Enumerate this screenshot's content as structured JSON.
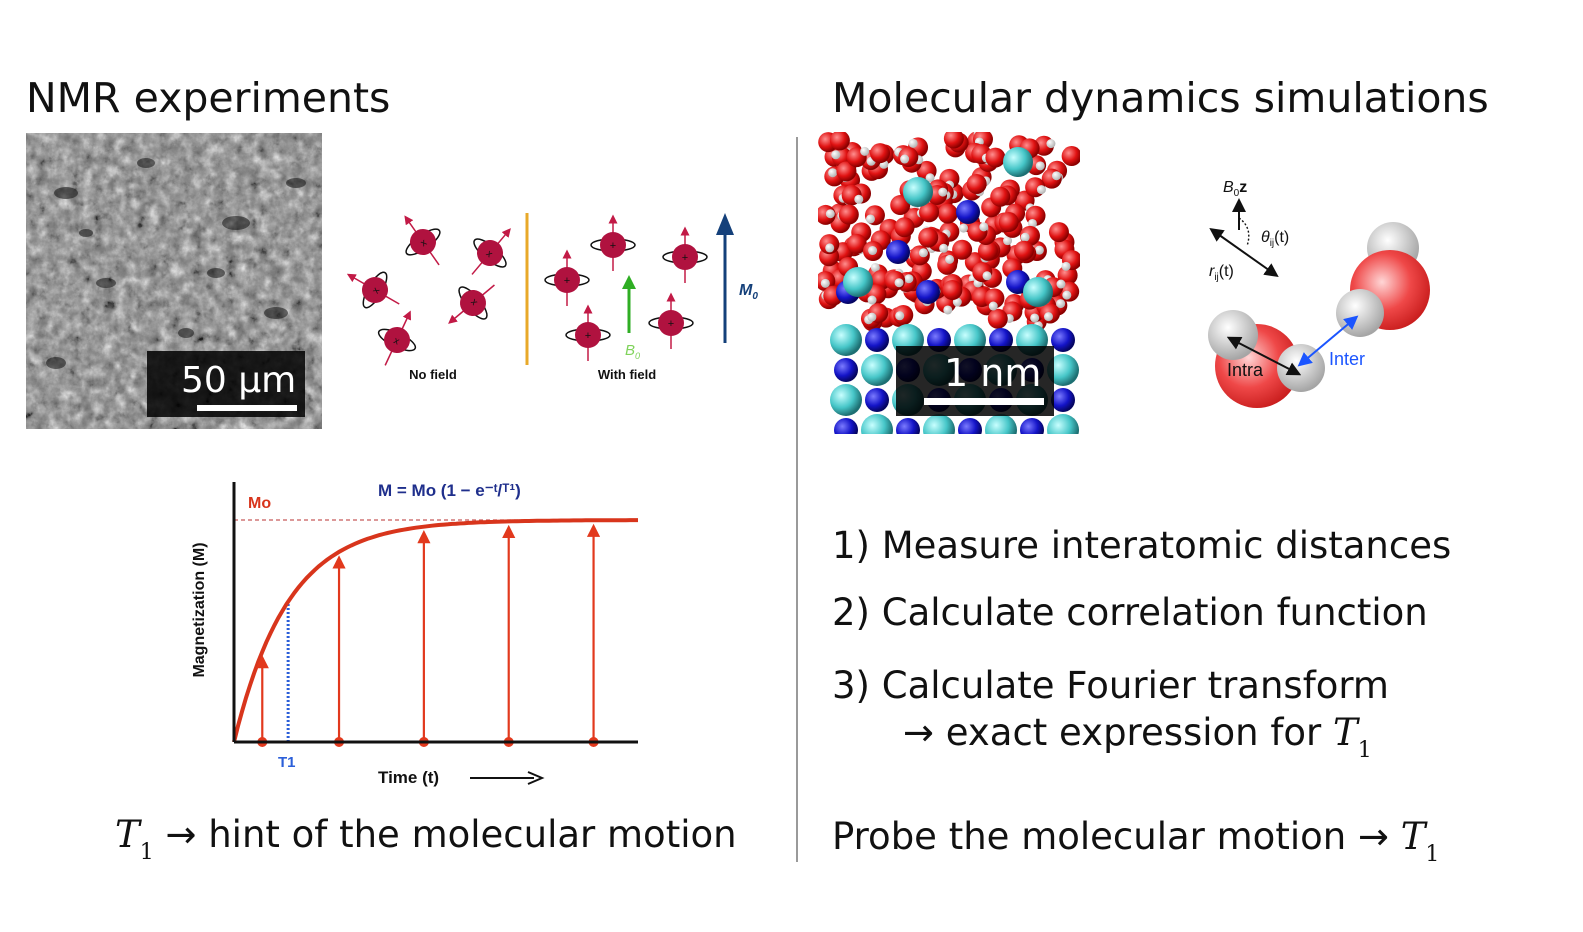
{
  "left": {
    "heading": "NMR experiments",
    "sem_scale": "50 µm",
    "spins": {
      "no_field": "No field",
      "with_field": "With field",
      "b0": "B",
      "b0_sub": "0",
      "m0": "M",
      "m0_sub": "0"
    },
    "caption_t": "T",
    "caption_sub": "1",
    "caption_rest": "→ hint of the molecular motion"
  },
  "right": {
    "heading": "Molecular dynamics simulations",
    "sim_scale": "1 nm",
    "pair": {
      "b0z": "B",
      "b0z_sub": "0",
      "b0z_bold": "z",
      "theta": "θ",
      "theta_sub": "ij",
      "theta_arg": "(t)",
      "r": "r",
      "r_sub": "ij",
      "r_arg": "(t)",
      "intra": "Intra",
      "inter": "Inter"
    },
    "steps": [
      "1) Measure interatomic distances",
      "2) Calculate correlation function",
      "3) Calculate Fourier transform"
    ],
    "step3_cont": "→ exact expression for",
    "step3_t": "T",
    "step3_sub": "1",
    "probe": "Probe the molecular motion →",
    "probe_t": "T",
    "probe_sub": "1"
  },
  "chart_data": {
    "type": "line",
    "title": "M = Mo (1 − e⁻ᵗ/ᵀ¹)",
    "xlabel": "Time (t)",
    "ylabel": "Magnetization (M)",
    "asymptote_label": "Mo",
    "t1_label": "T1",
    "series": [
      {
        "x": [
          0.0,
          0.1,
          0.2,
          0.3,
          0.4,
          0.5,
          0.6,
          0.7,
          0.8,
          0.9,
          1.0
        ],
        "y": [
          0.0,
          0.45,
          0.7,
          0.83,
          0.91,
          0.95,
          0.97,
          0.985,
          0.992,
          0.996,
          1.0
        ]
      }
    ],
    "arrow_x": [
      0.07,
      0.26,
      0.47,
      0.68,
      0.89
    ],
    "colors": {
      "curve": "#d8351c",
      "t1": "#2b5fd9",
      "title": "#1f2f8c",
      "m0": "#d8351c"
    }
  }
}
